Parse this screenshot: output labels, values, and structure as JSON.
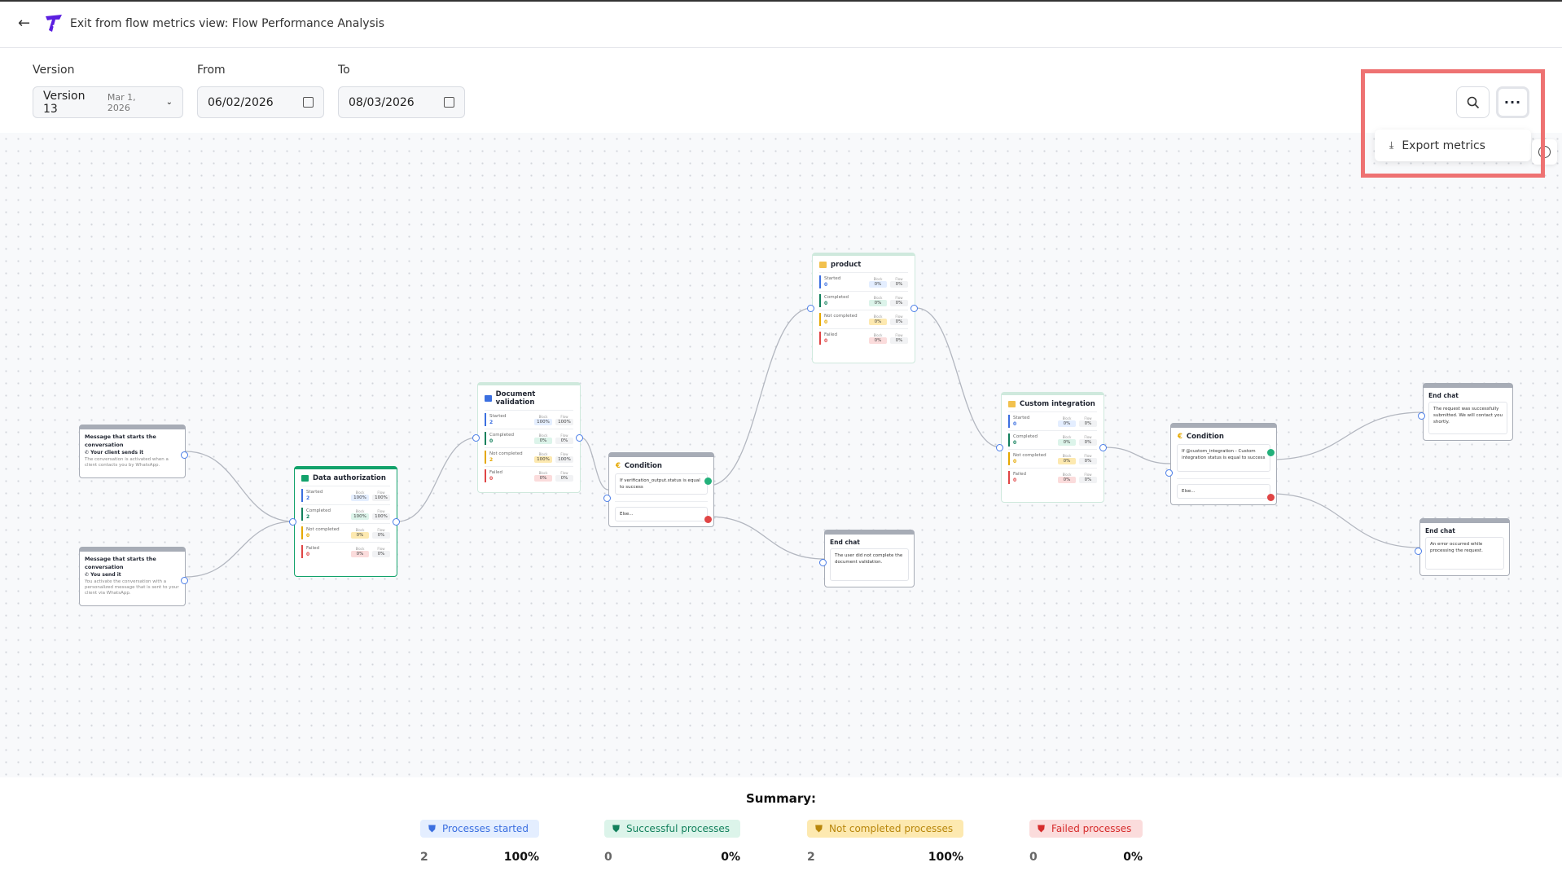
{
  "header": {
    "back_icon": "arrow-left-icon",
    "title": "Exit from flow metrics view: Flow Performance Analysis"
  },
  "filters": {
    "version_label": "Version",
    "version_value": "Version 13",
    "version_date": "Mar 1, 2026",
    "from_label": "From",
    "from_value": "06/02/2026",
    "to_label": "To",
    "to_value": "08/03/2026"
  },
  "toolbar": {
    "search_icon": "search-icon",
    "more_icon": "more-horizontal-icon",
    "menu_item": "Export metrics",
    "info_icon": "info-icon"
  },
  "colors": {
    "started": "#3b6fe0",
    "completed": "#12805c",
    "not_completed": "#e5a800",
    "failed": "#e04545",
    "accent": "#12a26b"
  },
  "metric_labels": {
    "started": "Started",
    "completed": "Completed",
    "not_completed": "Not completed",
    "failed": "Failed",
    "block": "Block",
    "flow": "Flow"
  },
  "nodes": {
    "msg1": {
      "title": "Message that starts the conversation",
      "sub": "Your client sends it",
      "desc": "The conversation is activated when a client contacts you by WhatsApp."
    },
    "msg2": {
      "title": "Message that starts the conversation",
      "sub": "You send it",
      "desc": "You activate the conversation with a personalized message that is sent to your client via WhatsApp."
    },
    "data_auth": {
      "title": "Data authorization",
      "metrics": [
        {
          "count": "2",
          "block": "100%",
          "flow": "100%"
        },
        {
          "count": "2",
          "block": "100%",
          "flow": "100%"
        },
        {
          "count": "0",
          "block": "0%",
          "flow": "0%"
        },
        {
          "count": "0",
          "block": "0%",
          "flow": "0%"
        }
      ]
    },
    "doc_val": {
      "title": "Document validation",
      "metrics": [
        {
          "count": "2",
          "block": "100%",
          "flow": "100%"
        },
        {
          "count": "0",
          "block": "0%",
          "flow": "0%"
        },
        {
          "count": "2",
          "block": "100%",
          "flow": "100%"
        },
        {
          "count": "0",
          "block": "0%",
          "flow": "0%"
        }
      ]
    },
    "product": {
      "title": "product",
      "metrics": [
        {
          "count": "0",
          "block": "0%",
          "flow": "0%"
        },
        {
          "count": "0",
          "block": "0%",
          "flow": "0%"
        },
        {
          "count": "0",
          "block": "0%",
          "flow": "0%"
        },
        {
          "count": "0",
          "block": "0%",
          "flow": "0%"
        }
      ]
    },
    "custom": {
      "title": "Custom integration",
      "metrics": [
        {
          "count": "0",
          "block": "0%",
          "flow": "0%"
        },
        {
          "count": "0",
          "block": "0%",
          "flow": "0%"
        },
        {
          "count": "0",
          "block": "0%",
          "flow": "0%"
        },
        {
          "count": "0",
          "block": "0%",
          "flow": "0%"
        }
      ]
    },
    "cond1": {
      "title": "Condition",
      "cond": "If verification_output.status is equal to success",
      "else": "Else..."
    },
    "cond2": {
      "title": "Condition",
      "cond": "If @custom_integration - Custom integration status is equal to success",
      "else": "Else..."
    },
    "end1": {
      "title": "End chat",
      "text": "The user did not complete the document validation."
    },
    "end2": {
      "title": "End chat",
      "text": "The request was successfully submitted. We will contact you shortly."
    },
    "end3": {
      "title": "End chat",
      "text": "An error occurred while processing the request."
    }
  },
  "summary": {
    "title": "Summary:",
    "items": [
      {
        "label": "Processes started",
        "count": "2",
        "percent": "100%",
        "color": "#3b6fe0",
        "bg": "#e4eeff"
      },
      {
        "label": "Successful processes",
        "count": "0",
        "percent": "0%",
        "color": "#12805c",
        "bg": "#dcf4ea"
      },
      {
        "label": "Not completed processes",
        "count": "2",
        "percent": "100%",
        "color": "#b8860b",
        "bg": "#fde9b0"
      },
      {
        "label": "Failed processes",
        "count": "0",
        "percent": "0%",
        "color": "#d62c2c",
        "bg": "#fbdcdc"
      }
    ]
  }
}
